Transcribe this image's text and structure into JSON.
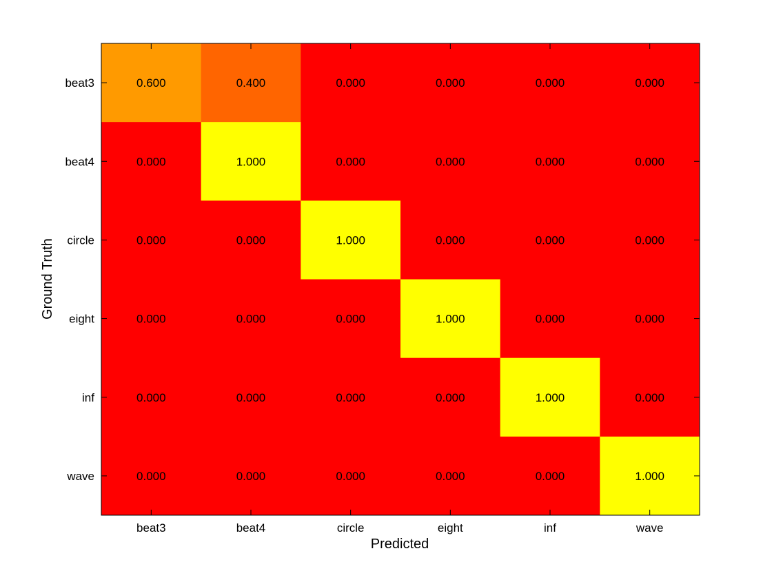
{
  "chart_data": {
    "type": "heatmap",
    "title": "",
    "xlabel": "Predicted",
    "ylabel": "Ground Truth",
    "x_categories": [
      "beat3",
      "beat4",
      "circle",
      "eight",
      "inf",
      "wave"
    ],
    "y_categories": [
      "beat3",
      "beat4",
      "circle",
      "eight",
      "inf",
      "wave"
    ],
    "values": [
      [
        0.6,
        0.4,
        0.0,
        0.0,
        0.0,
        0.0
      ],
      [
        0.0,
        1.0,
        0.0,
        0.0,
        0.0,
        0.0
      ],
      [
        0.0,
        0.0,
        1.0,
        0.0,
        0.0,
        0.0
      ],
      [
        0.0,
        0.0,
        0.0,
        1.0,
        0.0,
        0.0
      ],
      [
        0.0,
        0.0,
        0.0,
        0.0,
        1.0,
        0.0
      ],
      [
        0.0,
        0.0,
        0.0,
        0.0,
        0.0,
        1.0
      ]
    ],
    "value_format_decimals": 3,
    "colormap": "autumn",
    "color_low": "#ff0000",
    "color_high": "#ffff00",
    "value_range": [
      0,
      1
    ],
    "grid": false,
    "legend": "none"
  }
}
